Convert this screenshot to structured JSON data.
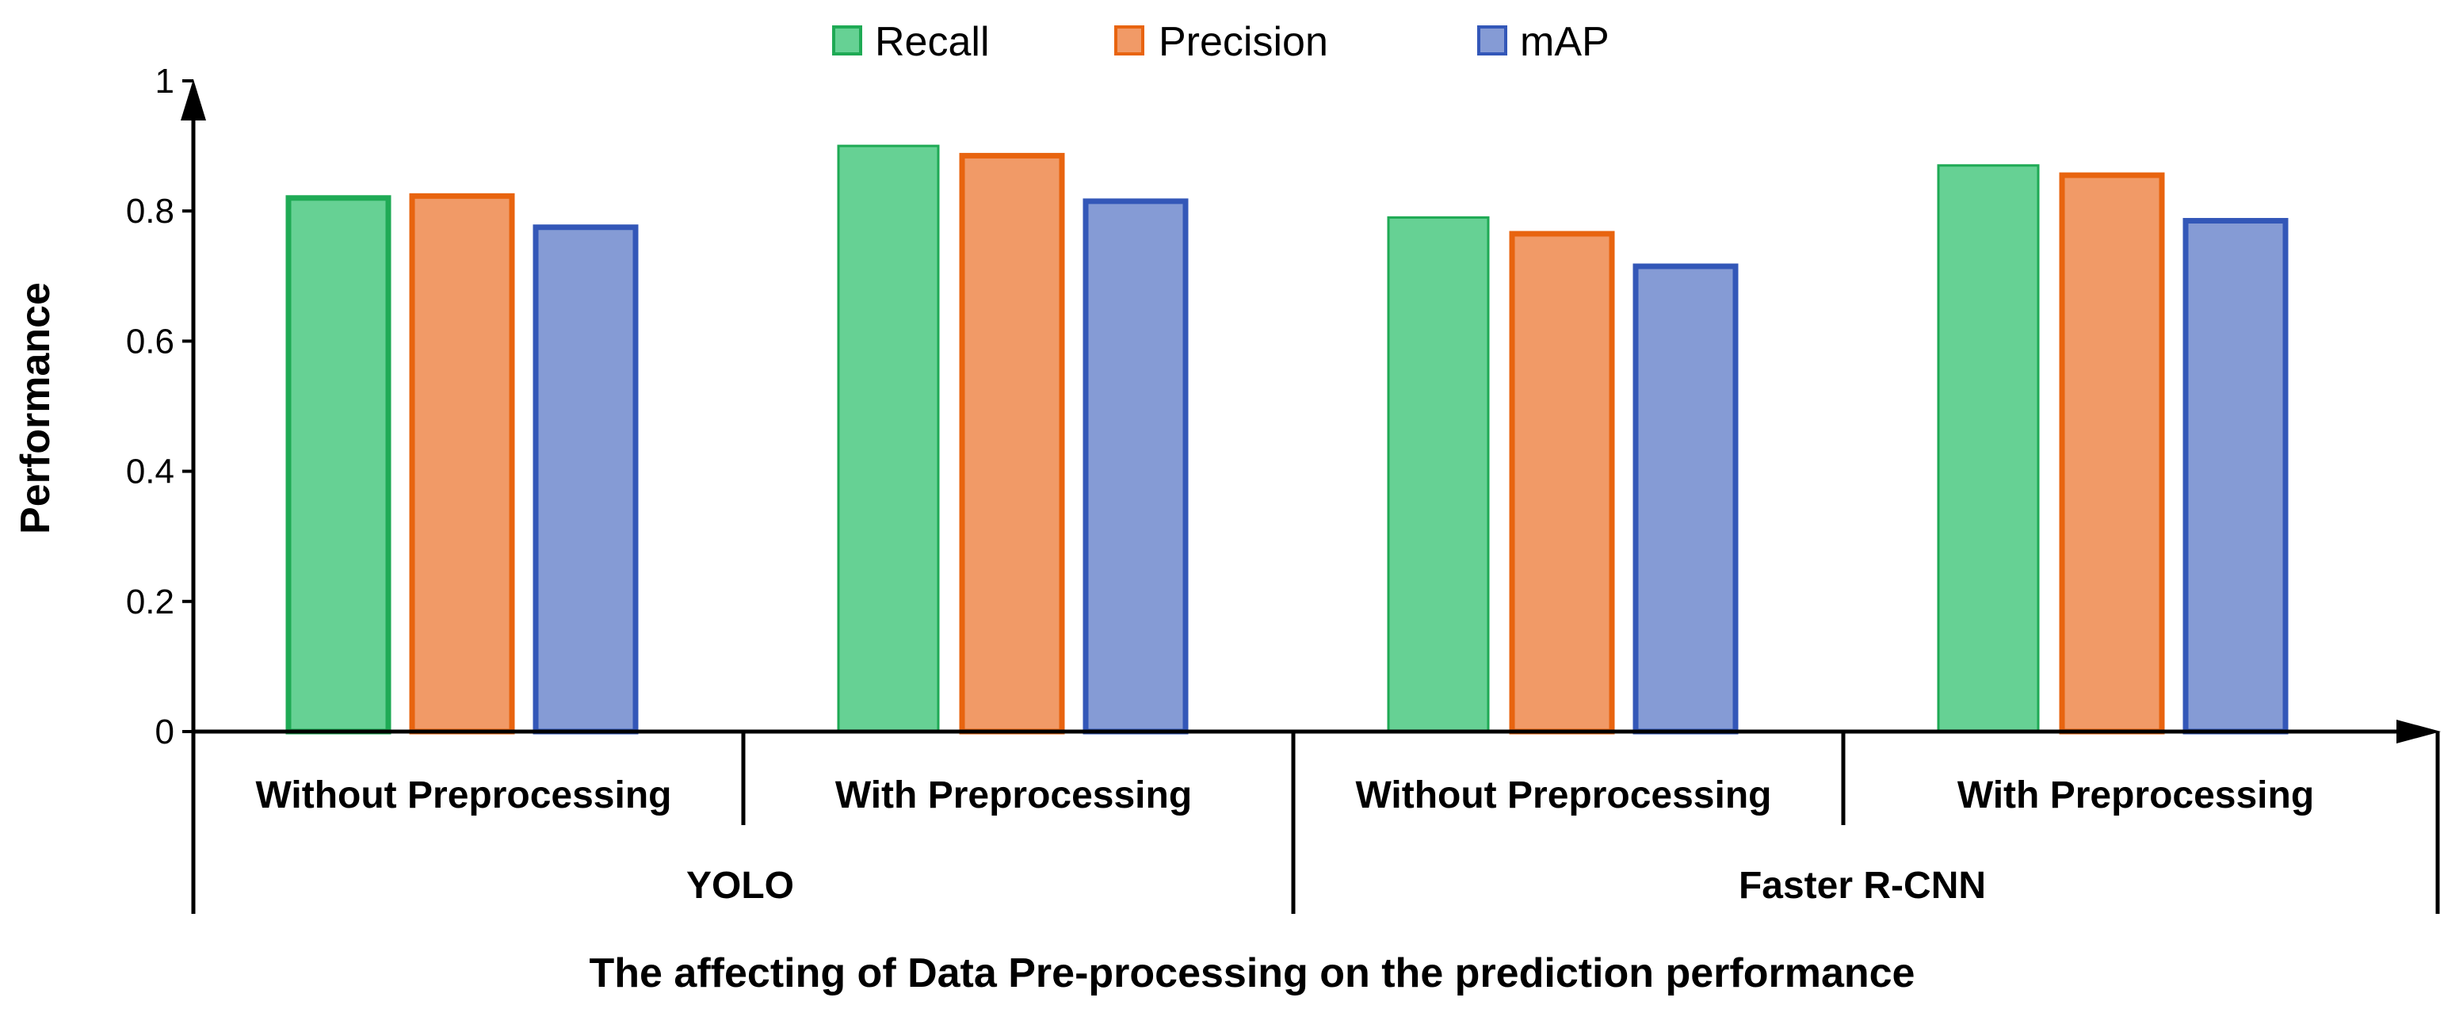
{
  "chart_data": {
    "type": "bar",
    "title": "",
    "xlabel": "The affecting of Data Pre-processing on the prediction performance",
    "ylabel": "Performance",
    "ylim": [
      0,
      1
    ],
    "yticks": [
      0,
      0.2,
      0.4,
      0.6,
      0.8,
      1
    ],
    "ytick_labels": [
      "0",
      "0.2",
      "0.4",
      "0.6",
      "0.8",
      "1"
    ],
    "grid": false,
    "legend_position": "top-center",
    "categories": [
      "Without Preprocessing",
      "With Preprocessing",
      "Without Preprocessing",
      "With Preprocessing"
    ],
    "groups": [
      {
        "label": "YOLO",
        "categories": [
          "Without Preprocessing",
          "With Preprocessing"
        ]
      },
      {
        "label": "Faster R-CNN",
        "categories": [
          "Without Preprocessing",
          "With Preprocessing"
        ]
      }
    ],
    "series": [
      {
        "name": "Recall",
        "values": [
          0.82,
          0.9,
          0.79,
          0.87
        ],
        "fill": "#66d194",
        "stroke": "#1faa55"
      },
      {
        "name": "Precision",
        "values": [
          0.823,
          0.885,
          0.765,
          0.855
        ],
        "fill": "#f19a67",
        "stroke": "#e8640f"
      },
      {
        "name": "mAP",
        "values": [
          0.775,
          0.815,
          0.715,
          0.785
        ],
        "fill": "#859bd5",
        "stroke": "#3357b8"
      }
    ]
  }
}
